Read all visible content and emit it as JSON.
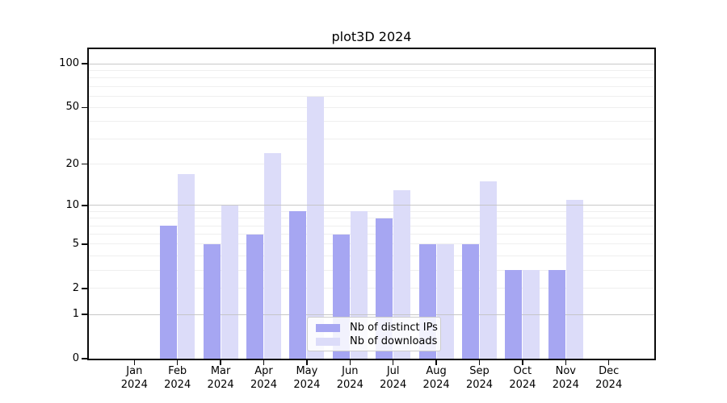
{
  "chart_data": {
    "type": "bar",
    "title": "plot3D 2024",
    "categories": [
      "Jan 2024",
      "Feb 2024",
      "Mar 2024",
      "Apr 2024",
      "May 2024",
      "Jun 2024",
      "Jul 2024",
      "Aug 2024",
      "Sep 2024",
      "Oct 2024",
      "Nov 2024",
      "Dec 2024"
    ],
    "series": [
      {
        "name": "Nb of distinct IPs",
        "color": "#a6a6f2",
        "values": [
          0,
          7,
          5,
          6,
          9,
          6,
          8,
          5,
          5,
          3,
          3,
          0
        ]
      },
      {
        "name": "Nb of downloads",
        "color": "#dcdcf9",
        "values": [
          0,
          17,
          10,
          24,
          59,
          9,
          13,
          5,
          15,
          3,
          11,
          0
        ]
      }
    ],
    "y_scale": "log10(1+y)",
    "ylim": [
      0,
      126
    ],
    "y_axis_max": 126,
    "y_ticks": [
      0,
      1,
      2,
      5,
      10,
      20,
      50,
      100
    ],
    "gridlines_major": [
      1,
      10,
      100
    ],
    "gridlines_minor": [
      2,
      3,
      4,
      5,
      6,
      7,
      8,
      9,
      20,
      30,
      40,
      50,
      60,
      70,
      80,
      90
    ],
    "grid": true,
    "legend_position": "lower center inside plot",
    "xlabel": "",
    "ylabel": ""
  }
}
